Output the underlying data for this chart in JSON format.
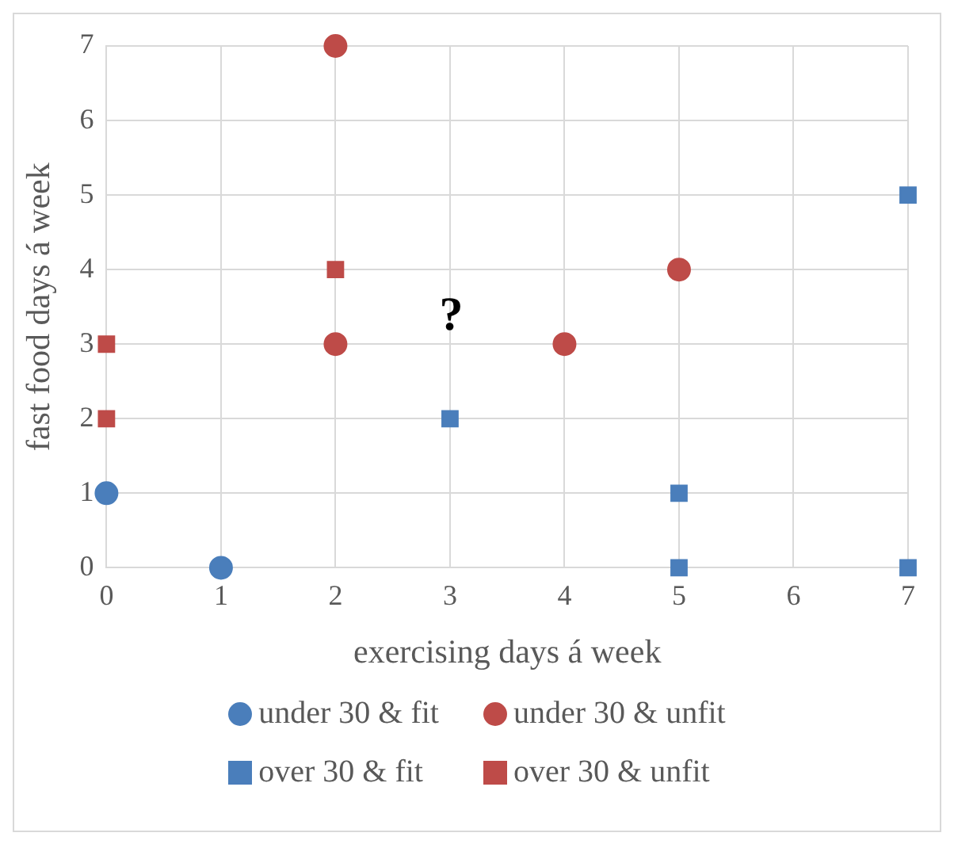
{
  "chart_data": {
    "type": "scatter",
    "xlabel": "exercising days á week",
    "ylabel": "fast food days á week",
    "xlim": [
      0,
      7
    ],
    "ylim": [
      0,
      7
    ],
    "xticks": [
      0,
      1,
      2,
      3,
      4,
      5,
      6,
      7
    ],
    "yticks": [
      0,
      1,
      2,
      3,
      4,
      5,
      6,
      7
    ],
    "grid": true,
    "legend": "bottom",
    "annotations": [
      "?"
    ],
    "series": [
      {
        "name": "under 30 & fit",
        "color": "#4a7ebb",
        "marker": "circle",
        "x": [
          0,
          1
        ],
        "values": [
          1,
          0
        ]
      },
      {
        "name": "under 30 & unfit",
        "color": "#be4b48",
        "marker": "circle",
        "x": [
          2,
          2,
          4,
          5
        ],
        "values": [
          7,
          3,
          3,
          4
        ]
      },
      {
        "name": "over 30 & fit",
        "color": "#4a7ebb",
        "marker": "square",
        "x": [
          3,
          5,
          5,
          7,
          7
        ],
        "values": [
          2,
          1,
          0,
          0,
          5
        ]
      },
      {
        "name": "over 30 & unfit",
        "color": "#be4b48",
        "marker": "square",
        "x": [
          0,
          0,
          2
        ],
        "values": [
          3,
          2,
          4
        ]
      }
    ]
  }
}
